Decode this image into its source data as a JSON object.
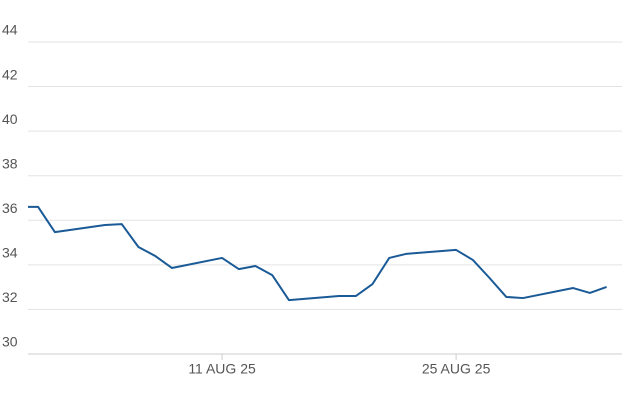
{
  "chart_data": {
    "type": "line",
    "x": [
      "2025-07-30",
      "2025-07-31",
      "2025-08-01",
      "2025-08-04",
      "2025-08-05",
      "2025-08-06",
      "2025-08-07",
      "2025-08-08",
      "2025-08-11",
      "2025-08-12",
      "2025-08-13",
      "2025-08-14",
      "2025-08-15",
      "2025-08-18",
      "2025-08-19",
      "2025-08-20",
      "2025-08-21",
      "2025-08-22",
      "2025-08-25",
      "2025-08-26",
      "2025-08-27",
      "2025-08-28",
      "2025-08-29",
      "2025-09-01",
      "2025-09-02",
      "2025-09-03"
    ],
    "values": [
      36.6,
      36.6,
      35.47,
      35.79,
      35.83,
      34.8,
      34.4,
      33.86,
      34.31,
      33.81,
      33.95,
      33.54,
      32.42,
      32.6,
      32.6,
      33.14,
      34.31,
      34.49,
      34.67,
      34.22,
      33.41,
      32.56,
      32.51,
      32.96,
      32.74,
      33.01
    ],
    "color": "#1a5a96",
    "xlim": [
      "2025-07-30",
      "2025-09-03"
    ],
    "xticks": [
      {
        "value": "2025-08-11",
        "label": "11 AUG 25"
      },
      {
        "value": "2025-08-25",
        "label": "25 AUG 25"
      }
    ],
    "ylim": [
      30,
      45
    ],
    "yticks": [
      30,
      32,
      34,
      36,
      38,
      40,
      42,
      44
    ],
    "grid": true
  }
}
